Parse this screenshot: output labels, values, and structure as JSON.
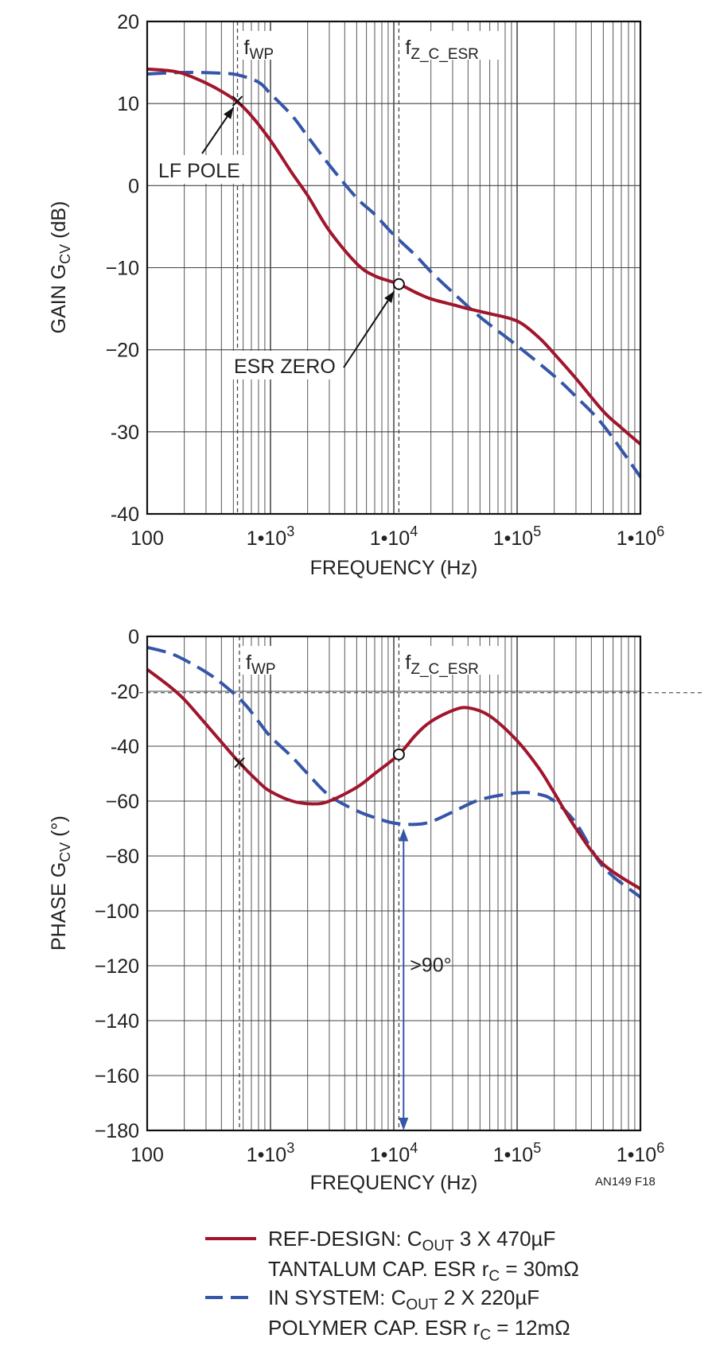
{
  "chart_data": [
    {
      "type": "line",
      "xscale": "log",
      "xlim": [
        100,
        1000000
      ],
      "ylim": [
        -40,
        20
      ],
      "yticks": [
        "20",
        "10",
        "0",
        "−10",
        "−20",
        "-30",
        "-40"
      ],
      "xticks": [
        {
          "base": "100",
          "exp": ""
        },
        {
          "base": "1•10",
          "exp": "3"
        },
        {
          "base": "1•10",
          "exp": "4"
        },
        {
          "base": "1•10",
          "exp": "5"
        },
        {
          "base": "1•10",
          "exp": "6"
        }
      ],
      "xlabel": "FREQUENCY (Hz)",
      "ylabel": {
        "pre": "GAIN G",
        "sub": "CV",
        "post": " (dB)"
      },
      "vlines": [
        {
          "x": 540,
          "label": "f",
          "sub": "WP"
        },
        {
          "x": 11000,
          "label": "f",
          "sub": "Z_C_ESR"
        }
      ],
      "annotations": {
        "lf_pole": {
          "text": "LF POLE",
          "x": 540,
          "y": 10.3
        },
        "esr_zero": {
          "text": "ESR ZERO",
          "x": 11000,
          "y": -12
        }
      },
      "series": [
        {
          "key": "ref",
          "color": "#a0162c",
          "dash": false,
          "x": [
            100,
            150,
            200,
            300,
            400,
            540,
            700,
            1000,
            1500,
            2000,
            3000,
            5000,
            7000,
            11000,
            15000,
            20000,
            30000,
            40000,
            60000,
            100000,
            150000,
            200000,
            300000,
            500000,
            700000,
            1000000
          ],
          "y": [
            14.2,
            14,
            13.6,
            12.5,
            11.5,
            10.2,
            8.5,
            5.5,
            1.5,
            -1.2,
            -5.5,
            -9.5,
            -11,
            -12,
            -13,
            -13.8,
            -14.5,
            -15,
            -15.6,
            -16.5,
            -18.5,
            -20.5,
            -23.5,
            -27.5,
            -29.5,
            -31.5
          ]
        },
        {
          "key": "sys",
          "color": "#3556a8",
          "dash": true,
          "x": [
            100,
            200,
            400,
            540,
            800,
            1000,
            1500,
            2000,
            3000,
            5000,
            7000,
            10000,
            15000,
            20000,
            30000,
            50000,
            100000,
            200000,
            300000,
            500000,
            1000000
          ],
          "y": [
            13.6,
            13.8,
            13.7,
            13.5,
            12.6,
            11.2,
            8.5,
            6,
            2.5,
            -1.5,
            -3.5,
            -6,
            -8.5,
            -10.5,
            -13,
            -16,
            -19.5,
            -23.2,
            -25.7,
            -29.2,
            -35.5
          ]
        }
      ]
    },
    {
      "type": "line",
      "xscale": "log",
      "xlim": [
        100,
        1000000
      ],
      "ylim": [
        -180,
        0
      ],
      "yticks": [
        "0",
        "-20",
        "-40",
        "−60",
        "−80",
        "−100",
        "−120",
        "−140",
        "−160",
        "−180"
      ],
      "xticks": [
        {
          "base": "100",
          "exp": ""
        },
        {
          "base": "1•10",
          "exp": "3"
        },
        {
          "base": "1•10",
          "exp": "4"
        },
        {
          "base": "1•10",
          "exp": "5"
        },
        {
          "base": "1•10",
          "exp": "6"
        }
      ],
      "xlabel": "FREQUENCY (Hz)",
      "ylabel": {
        "pre": "PHASE G",
        "sub": "CV",
        "post": " (°)"
      },
      "hline": -20.5,
      "vlines": [
        {
          "x": 560,
          "label": "f",
          "sub": "WP"
        },
        {
          "x": 11000,
          "label": "f",
          "sub": "Z_C_ESR"
        }
      ],
      "markers": {
        "cross": {
          "x": 560,
          "y": -46
        },
        "circle": {
          "x": 11000,
          "y": -43
        }
      },
      "arrow": {
        "x": 12000,
        "y_from": -70,
        "y_to": -180,
        "label": ">90°"
      },
      "series": [
        {
          "key": "ref",
          "color": "#a0162c",
          "dash": false,
          "x": [
            100,
            150,
            200,
            300,
            400,
            560,
            800,
            1000,
            1500,
            2200,
            3000,
            5000,
            7000,
            11000,
            15000,
            20000,
            30000,
            40000,
            60000,
            100000,
            150000,
            200000,
            300000,
            500000,
            1000000
          ],
          "y": [
            -12,
            -18,
            -23,
            -32,
            -38.5,
            -46,
            -53,
            -56.5,
            -60,
            -61,
            -60,
            -55,
            -50,
            -43,
            -36,
            -31,
            -27,
            -26,
            -29,
            -38,
            -48,
            -57,
            -70,
            -83,
            -92
          ]
        },
        {
          "key": "sys",
          "color": "#3556a8",
          "dash": true,
          "x": [
            100,
            150,
            200,
            300,
            400,
            600,
            800,
            1000,
            1500,
            2000,
            3000,
            5000,
            7000,
            10000,
            15000,
            20000,
            30000,
            50000,
            100000,
            150000,
            200000,
            300000,
            500000,
            1000000
          ],
          "y": [
            -4,
            -6,
            -8.5,
            -13,
            -17,
            -24,
            -31,
            -36.5,
            -44,
            -50,
            -58,
            -63.5,
            -66,
            -68,
            -68.5,
            -67.5,
            -64,
            -59.5,
            -57,
            -57.5,
            -60,
            -68,
            -84,
            -95
          ]
        }
      ]
    }
  ],
  "figure_code": "AN149 F18",
  "legend": [
    {
      "key": "ref",
      "color": "#a0162c",
      "dash": false,
      "line1": {
        "pre": "REF-DESIGN: C",
        "sub": "OUT",
        "post": " 3 X 470µF"
      },
      "line2": {
        "pre": "TANTALUM CAP. ESR r",
        "sub": "C",
        "post": " = 30mΩ"
      }
    },
    {
      "key": "sys",
      "color": "#3556a8",
      "dash": true,
      "line1": {
        "pre": "IN SYSTEM: C",
        "sub": "OUT",
        "post": " 2 X 220µF"
      },
      "line2": {
        "pre": "POLYMER CAP. ESR r",
        "sub": "C",
        "post": " = 12mΩ"
      }
    }
  ]
}
